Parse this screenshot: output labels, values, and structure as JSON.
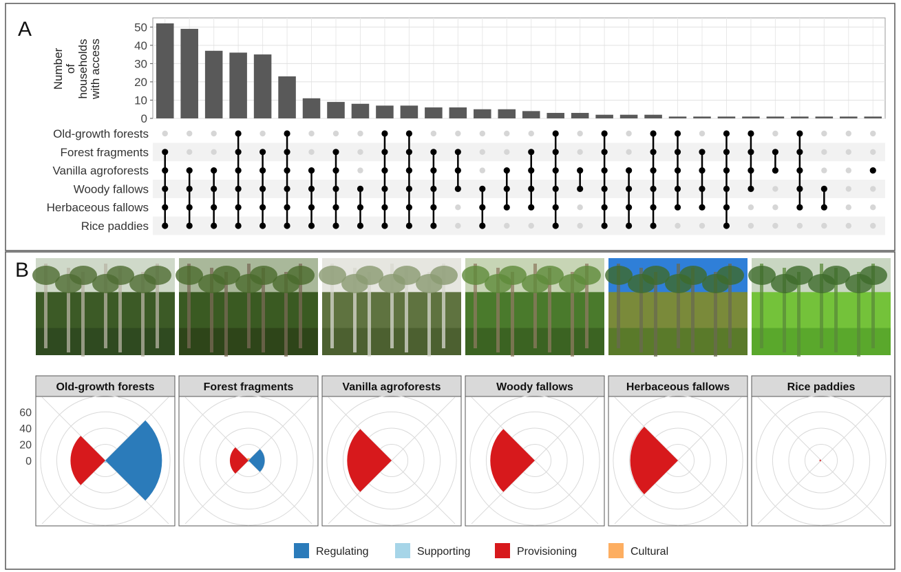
{
  "panels": {
    "a": {
      "letter": "A"
    },
    "b": {
      "letter": "B"
    }
  },
  "chart_data": [
    {
      "type": "bar",
      "panel": "A",
      "ylabel": [
        "Number",
        "of",
        "households",
        "with access"
      ],
      "y_ticks": [
        0,
        10,
        20,
        30,
        40,
        50
      ],
      "ylim": [
        0,
        55
      ],
      "grid": true,
      "values": [
        52,
        49,
        37,
        36,
        35,
        23,
        11,
        9,
        8,
        7,
        7,
        6,
        6,
        5,
        5,
        4,
        3,
        3,
        2,
        2,
        2,
        1,
        1,
        1,
        1,
        1,
        1,
        1,
        1,
        1
      ],
      "set_labels": [
        "Old-growth forests",
        "Forest fragments",
        "Vanilla agroforests",
        "Woody fallows",
        "Herbaceous fallows",
        "Rice paddies"
      ],
      "memberships": [
        [
          1,
          2,
          3,
          4,
          5
        ],
        [
          2,
          3,
          4,
          5
        ],
        [
          2,
          3,
          4,
          5
        ],
        [
          0,
          1,
          2,
          3,
          4,
          5
        ],
        [
          1,
          2,
          3,
          4,
          5
        ],
        [
          0,
          1,
          2,
          3,
          4,
          5
        ],
        [
          2,
          3,
          4,
          5
        ],
        [
          1,
          2,
          3,
          4,
          5
        ],
        [
          3,
          4,
          5
        ],
        [
          0,
          1,
          2,
          3,
          4,
          5
        ],
        [
          0,
          1,
          2,
          3,
          4,
          5
        ],
        [
          1,
          2,
          3,
          4,
          5
        ],
        [
          1,
          2,
          3
        ],
        [
          3,
          4,
          5
        ],
        [
          2,
          3,
          4
        ],
        [
          1,
          2,
          3,
          4
        ],
        [
          0,
          1,
          2,
          3,
          4,
          5
        ],
        [
          2,
          3
        ],
        [
          0,
          1,
          2,
          3,
          4,
          5
        ],
        [
          2,
          3,
          4,
          5
        ],
        [
          0,
          1,
          2,
          3,
          4,
          5
        ],
        [
          0,
          1,
          2,
          3,
          4
        ],
        [
          1,
          2,
          3,
          4
        ],
        [
          0,
          1,
          2,
          3,
          4,
          5
        ],
        [
          0,
          1,
          2,
          3
        ],
        [
          1,
          2
        ],
        [
          0,
          1,
          2,
          3,
          4
        ],
        [
          3,
          4
        ],
        [],
        [
          2
        ]
      ]
    },
    {
      "type": "polar",
      "panel": "B",
      "r_ticks": [
        0,
        20,
        40,
        60
      ],
      "facets": [
        {
          "title": "Old-growth forests",
          "values": {
            "Regulating": 70,
            "Supporting": 3,
            "Provisioning": 43,
            "Cultural": 0
          }
        },
        {
          "title": "Forest fragments",
          "values": {
            "Regulating": 20,
            "Supporting": 2,
            "Provisioning": 23,
            "Cultural": 3
          }
        },
        {
          "title": "Vanilla agroforests",
          "values": {
            "Regulating": 0,
            "Supporting": 0,
            "Provisioning": 55,
            "Cultural": 0
          }
        },
        {
          "title": "Woody fallows",
          "values": {
            "Regulating": 0,
            "Supporting": 0,
            "Provisioning": 55,
            "Cultural": 0
          }
        },
        {
          "title": "Herbaceous fallows",
          "values": {
            "Regulating": 0,
            "Supporting": 0,
            "Provisioning": 59,
            "Cultural": 0
          }
        },
        {
          "title": "Rice paddies",
          "values": {
            "Regulating": 0,
            "Supporting": 0,
            "Provisioning": 2,
            "Cultural": 0
          }
        }
      ],
      "legend": [
        {
          "name": "Regulating",
          "color": "#2b7bba"
        },
        {
          "name": "Supporting",
          "color": "#a6d5e8"
        },
        {
          "name": "Provisioning",
          "color": "#d7191c"
        },
        {
          "name": "Cultural",
          "color": "#fdae61"
        }
      ],
      "legend_position": "bottom"
    }
  ]
}
